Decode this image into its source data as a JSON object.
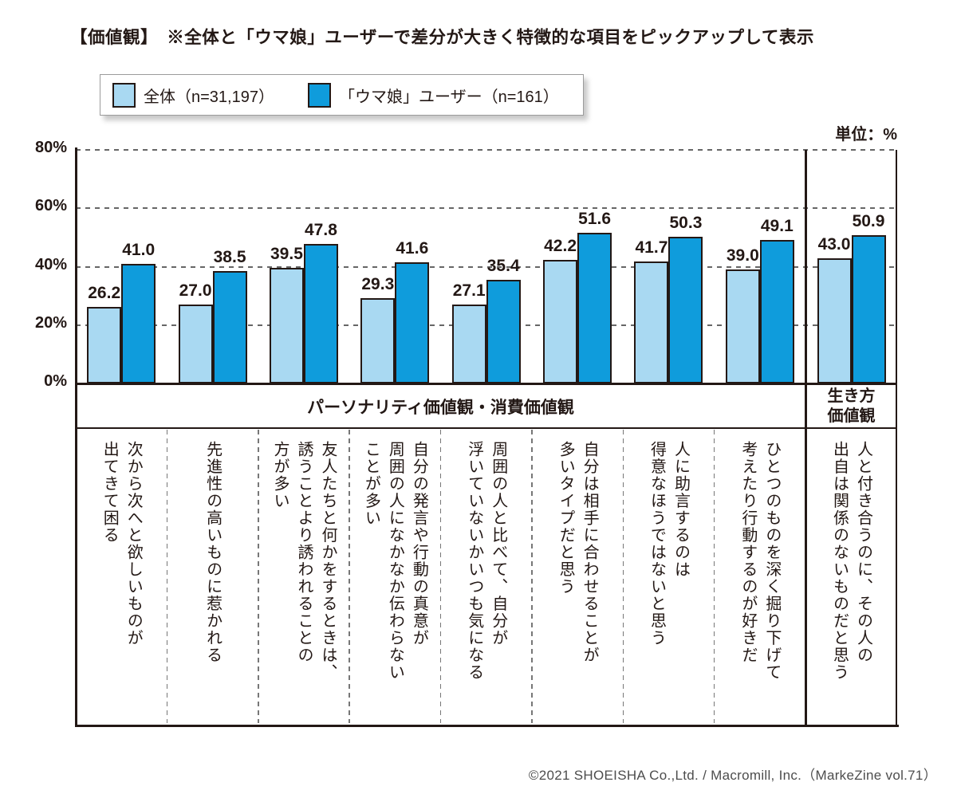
{
  "title": "【価値観】　※全体と「ウマ娘」ユーザーで差分が大きく特徴的な項目をピックアップして表示",
  "unit": "単位：%",
  "legend": {
    "items": [
      {
        "label": "全体（n=31,197）",
        "color": "#A9D9F2"
      },
      {
        "label": "「ウマ娘」ユーザー（n=161）",
        "color": "#0F9CDC"
      }
    ]
  },
  "footer": "©2021 SHOEISHA Co.,Ltd. / Macromill, Inc.（MarkeZine vol.71）",
  "colors": {
    "bar_light": "#A9D9F2",
    "bar_dark": "#0F9CDC",
    "outline": "#231815",
    "grid": "#666666",
    "separator": "#777777"
  },
  "chart_data": {
    "type": "bar",
    "unit": "%",
    "ylim": [
      0,
      80
    ],
    "yticks": [
      "0%",
      "20%",
      "40%",
      "60%",
      "80%"
    ],
    "grid": "dashed-horizontal",
    "legend_position": "top-left",
    "categories": [
      "次から次へと欲しいものが\n出てきて困る",
      "先進性の高いものに惹かれる",
      "友人たちと何かをするときは、\n誘うことより誘われることの\n方が多い",
      "自分の発言や行動の真意が\n周囲の人になかなか伝わらない\nことが多い",
      "周囲の人と比べて、自分が\n浮いていないかいつも気になる",
      "自分は相手に合わせることが\n多いタイプだと思う",
      "人に助言するのは\n得意なほうではないと思う",
      "ひとつのものを深く掘り下げて\n考えたり行動するのが好きだ",
      "人と付き合うのに、その人の\n出自は関係のないものだと思う"
    ],
    "series": [
      {
        "name": "全体（n=31,197）",
        "color": "#A9D9F2",
        "values": [
          26.2,
          27.0,
          39.5,
          29.3,
          27.1,
          42.2,
          41.7,
          39.0,
          43.0
        ]
      },
      {
        "name": "「ウマ娘」ユーザー（n=161）",
        "color": "#0F9CDC",
        "values": [
          41.0,
          38.5,
          47.8,
          41.6,
          35.4,
          51.6,
          50.3,
          49.1,
          50.9
        ]
      }
    ],
    "sections": [
      {
        "label": "パーソナリティ価値観・消費価値観",
        "span": 8
      },
      {
        "label": "生き方\n価値観",
        "span": 1
      }
    ]
  }
}
